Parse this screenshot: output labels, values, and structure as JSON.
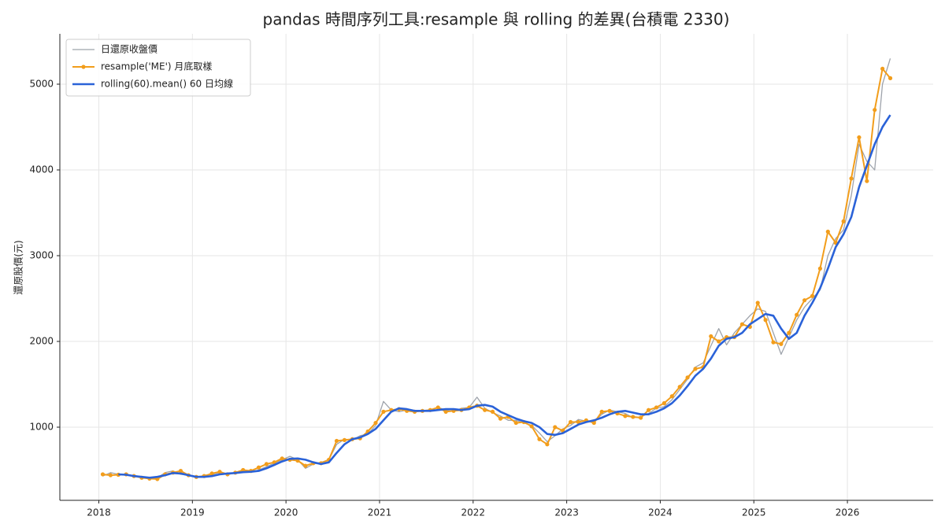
{
  "chart_data": {
    "type": "line",
    "title": "pandas 時間序列工具:resample 與 rolling 的差異(台積電 2330)",
    "y_label": "還原股價(元)",
    "x": [
      "2018-01",
      "2018-02",
      "2018-03",
      "2018-04",
      "2018-05",
      "2018-06",
      "2018-07",
      "2018-08",
      "2018-09",
      "2018-10",
      "2018-11",
      "2018-12",
      "2019-01",
      "2019-02",
      "2019-03",
      "2019-04",
      "2019-05",
      "2019-06",
      "2019-07",
      "2019-08",
      "2019-09",
      "2019-10",
      "2019-11",
      "2019-12",
      "2020-01",
      "2020-02",
      "2020-03",
      "2020-04",
      "2020-05",
      "2020-06",
      "2020-07",
      "2020-08",
      "2020-09",
      "2020-10",
      "2020-11",
      "2020-12",
      "2021-01",
      "2021-02",
      "2021-03",
      "2021-04",
      "2021-05",
      "2021-06",
      "2021-07",
      "2021-08",
      "2021-09",
      "2021-10",
      "2021-11",
      "2021-12",
      "2022-01",
      "2022-02",
      "2022-03",
      "2022-04",
      "2022-05",
      "2022-06",
      "2022-07",
      "2022-08",
      "2022-09",
      "2022-10",
      "2022-11",
      "2022-12",
      "2023-01",
      "2023-02",
      "2023-03",
      "2023-04",
      "2023-05",
      "2023-06",
      "2023-07",
      "2023-08",
      "2023-09",
      "2023-10",
      "2023-11",
      "2023-12",
      "2024-01",
      "2024-02",
      "2024-03",
      "2024-04",
      "2024-05",
      "2024-06",
      "2024-07",
      "2024-08",
      "2024-09",
      "2024-10",
      "2024-11",
      "2024-12",
      "2025-01",
      "2025-02",
      "2025-03",
      "2025-04",
      "2025-05",
      "2025-06",
      "2025-07",
      "2025-08",
      "2025-09",
      "2025-10",
      "2025-11",
      "2025-12",
      "2026-01",
      "2026-02",
      "2026-03",
      "2026-04",
      "2026-05",
      "2026-06"
    ],
    "series": [
      {
        "name": "日還原收盤價",
        "color": "#9ea3ab",
        "width": 1.3,
        "markers": false,
        "values": [
          430,
          470,
          450,
          440,
          440,
          420,
          400,
          410,
          470,
          490,
          450,
          440,
          410,
          440,
          450,
          470,
          460,
          470,
          490,
          480,
          500,
          540,
          580,
          620,
          660,
          620,
          520,
          570,
          590,
          620,
          800,
          860,
          850,
          900,
          920,
          1020,
          1300,
          1200,
          1180,
          1200,
          1190,
          1180,
          1200,
          1230,
          1200,
          1180,
          1220,
          1230,
          1350,
          1220,
          1170,
          1130,
          1080,
          1080,
          1050,
          1020,
          930,
          830,
          900,
          980,
          1020,
          1090,
          1070,
          1060,
          1150,
          1200,
          1180,
          1160,
          1110,
          1120,
          1160,
          1220,
          1240,
          1320,
          1440,
          1560,
          1700,
          1750,
          1950,
          2150,
          1960,
          2100,
          2200,
          2300,
          2380,
          2350,
          2100,
          1850,
          2050,
          2250,
          2400,
          2500,
          2600,
          3000,
          3200,
          3300,
          3700,
          4300,
          4100,
          4000,
          5000,
          5300
        ]
      },
      {
        "name": "resample('ME') 月底取樣",
        "color": "#f29d1b",
        "width": 2,
        "markers": true,
        "values": [
          450,
          440,
          445,
          450,
          430,
          410,
          400,
          395,
          450,
          470,
          490,
          440,
          420,
          430,
          460,
          480,
          450,
          470,
          500,
          490,
          530,
          570,
          590,
          635,
          620,
          610,
          550,
          580,
          580,
          620,
          840,
          850,
          860,
          870,
          950,
          1050,
          1180,
          1200,
          1210,
          1190,
          1180,
          1190,
          1200,
          1230,
          1180,
          1190,
          1200,
          1230,
          1250,
          1200,
          1180,
          1100,
          1120,
          1050,
          1060,
          1010,
          860,
          800,
          1000,
          960,
          1060,
          1060,
          1080,
          1050,
          1180,
          1190,
          1160,
          1130,
          1120,
          1110,
          1200,
          1230,
          1280,
          1360,
          1470,
          1580,
          1680,
          1700,
          2060,
          2000,
          2050,
          2050,
          2200,
          2170,
          2450,
          2250,
          1990,
          1970,
          2100,
          2310,
          2480,
          2530,
          2850,
          3280,
          3150,
          3400,
          3900,
          4380,
          3870,
          4700,
          5180,
          5070
        ]
      },
      {
        "name": "rolling(60).mean() 60 日均線",
        "color": "#2a62d8",
        "width": 2.6,
        "markers": false,
        "values": [
          null,
          null,
          450,
          445,
          430,
          420,
          410,
          420,
          440,
          465,
          460,
          440,
          420,
          420,
          430,
          450,
          460,
          465,
          475,
          480,
          490,
          520,
          560,
          600,
          630,
          635,
          620,
          590,
          570,
          590,
          700,
          800,
          860,
          880,
          920,
          980,
          1080,
          1180,
          1220,
          1210,
          1190,
          1190,
          1190,
          1200,
          1210,
          1210,
          1200,
          1210,
          1250,
          1260,
          1240,
          1180,
          1140,
          1100,
          1070,
          1050,
          1000,
          920,
          910,
          930,
          980,
          1030,
          1060,
          1080,
          1110,
          1150,
          1180,
          1190,
          1170,
          1150,
          1150,
          1180,
          1220,
          1280,
          1370,
          1480,
          1600,
          1680,
          1800,
          1950,
          2030,
          2050,
          2100,
          2200,
          2260,
          2320,
          2300,
          2150,
          2030,
          2100,
          2300,
          2450,
          2620,
          2850,
          3100,
          3250,
          3450,
          3800,
          4050,
          4300,
          4500,
          4640
        ]
      }
    ],
    "xlim": [
      "2017-08",
      "2026-12"
    ],
    "xticks": [
      "2018",
      "2019",
      "2020",
      "2021",
      "2022",
      "2023",
      "2024",
      "2025",
      "2026"
    ],
    "ylim": [
      147,
      5587
    ],
    "yticks": [
      1000,
      2000,
      3000,
      4000,
      5000
    ],
    "grid": true,
    "legend": "upper-left"
  }
}
